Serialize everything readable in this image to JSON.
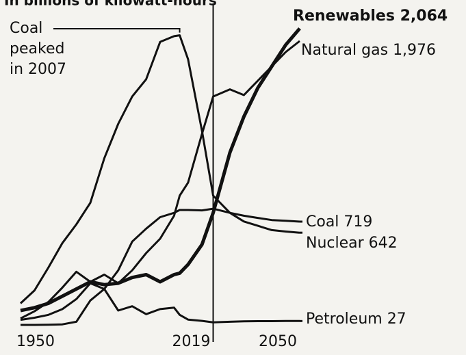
{
  "chart_data": {
    "type": "line",
    "subtitle": "In billions of kilowatt-hours",
    "annotation": [
      "Coal",
      "peaked",
      "in 2007"
    ],
    "x": [
      1950,
      1955,
      1960,
      1965,
      1970,
      1975,
      1980,
      1985,
      1990,
      1995,
      2000,
      2005,
      2007,
      2010,
      2015,
      2019,
      2025,
      2030,
      2035,
      2040,
      2045,
      2050
    ],
    "xlim": [
      1950,
      2050
    ],
    "xticks": [
      1950,
      2019,
      2050
    ],
    "ylim": [
      0,
      2200
    ],
    "series": [
      {
        "name": "Renewables",
        "color": "#111111",
        "bold": true,
        "values": [
          100,
          120,
          150,
          200,
          250,
          300,
          280,
          290,
          330,
          350,
          300,
          350,
          360,
          420,
          560,
          780,
          1200,
          1450,
          1650,
          1800,
          1950,
          2064
        ],
        "value_labels": [
          null,
          null,
          null,
          null,
          null,
          null,
          null,
          null,
          null,
          null,
          null,
          null,
          null,
          null,
          null,
          null,
          null,
          null,
          null,
          null,
          null,
          "2,064"
        ]
      },
      {
        "name": "Natural gas",
        "color": "#111111",
        "values": [
          45,
          95,
          160,
          260,
          370,
          300,
          350,
          290,
          380,
          500,
          600,
          760,
          900,
          990,
          1330,
          1590,
          1640,
          1600,
          1700,
          1800,
          1900,
          1976
        ],
        "value_labels": [
          null,
          null,
          null,
          null,
          null,
          null,
          null,
          null,
          null,
          null,
          null,
          null,
          null,
          null,
          null,
          null,
          null,
          null,
          null,
          null,
          null,
          "1,976"
        ]
      },
      {
        "name": "Coal",
        "color": "#111111",
        "values": [
          150,
          240,
          400,
          570,
          700,
          850,
          1160,
          1400,
          1590,
          1710,
          1970,
          2010,
          2016,
          1850,
          1350,
          900,
          780,
          760,
          745,
          730,
          725,
          719
        ]
      },
      {
        "name": "Nuclear",
        "color": "#111111",
        "values": [
          0,
          0,
          1,
          4,
          22,
          170,
          250,
          380,
          580,
          670,
          750,
          780,
          800,
          800,
          797,
          809,
          780,
          720,
          690,
          660,
          650,
          642
        ]
      },
      {
        "name": "Petroleum",
        "color": "#111111",
        "values": [
          35,
          50,
          70,
          110,
          180,
          290,
          250,
          100,
          130,
          75,
          110,
          120,
          70,
          37,
          28,
          18,
          22,
          25,
          26,
          26,
          27,
          27
        ]
      }
    ]
  }
}
